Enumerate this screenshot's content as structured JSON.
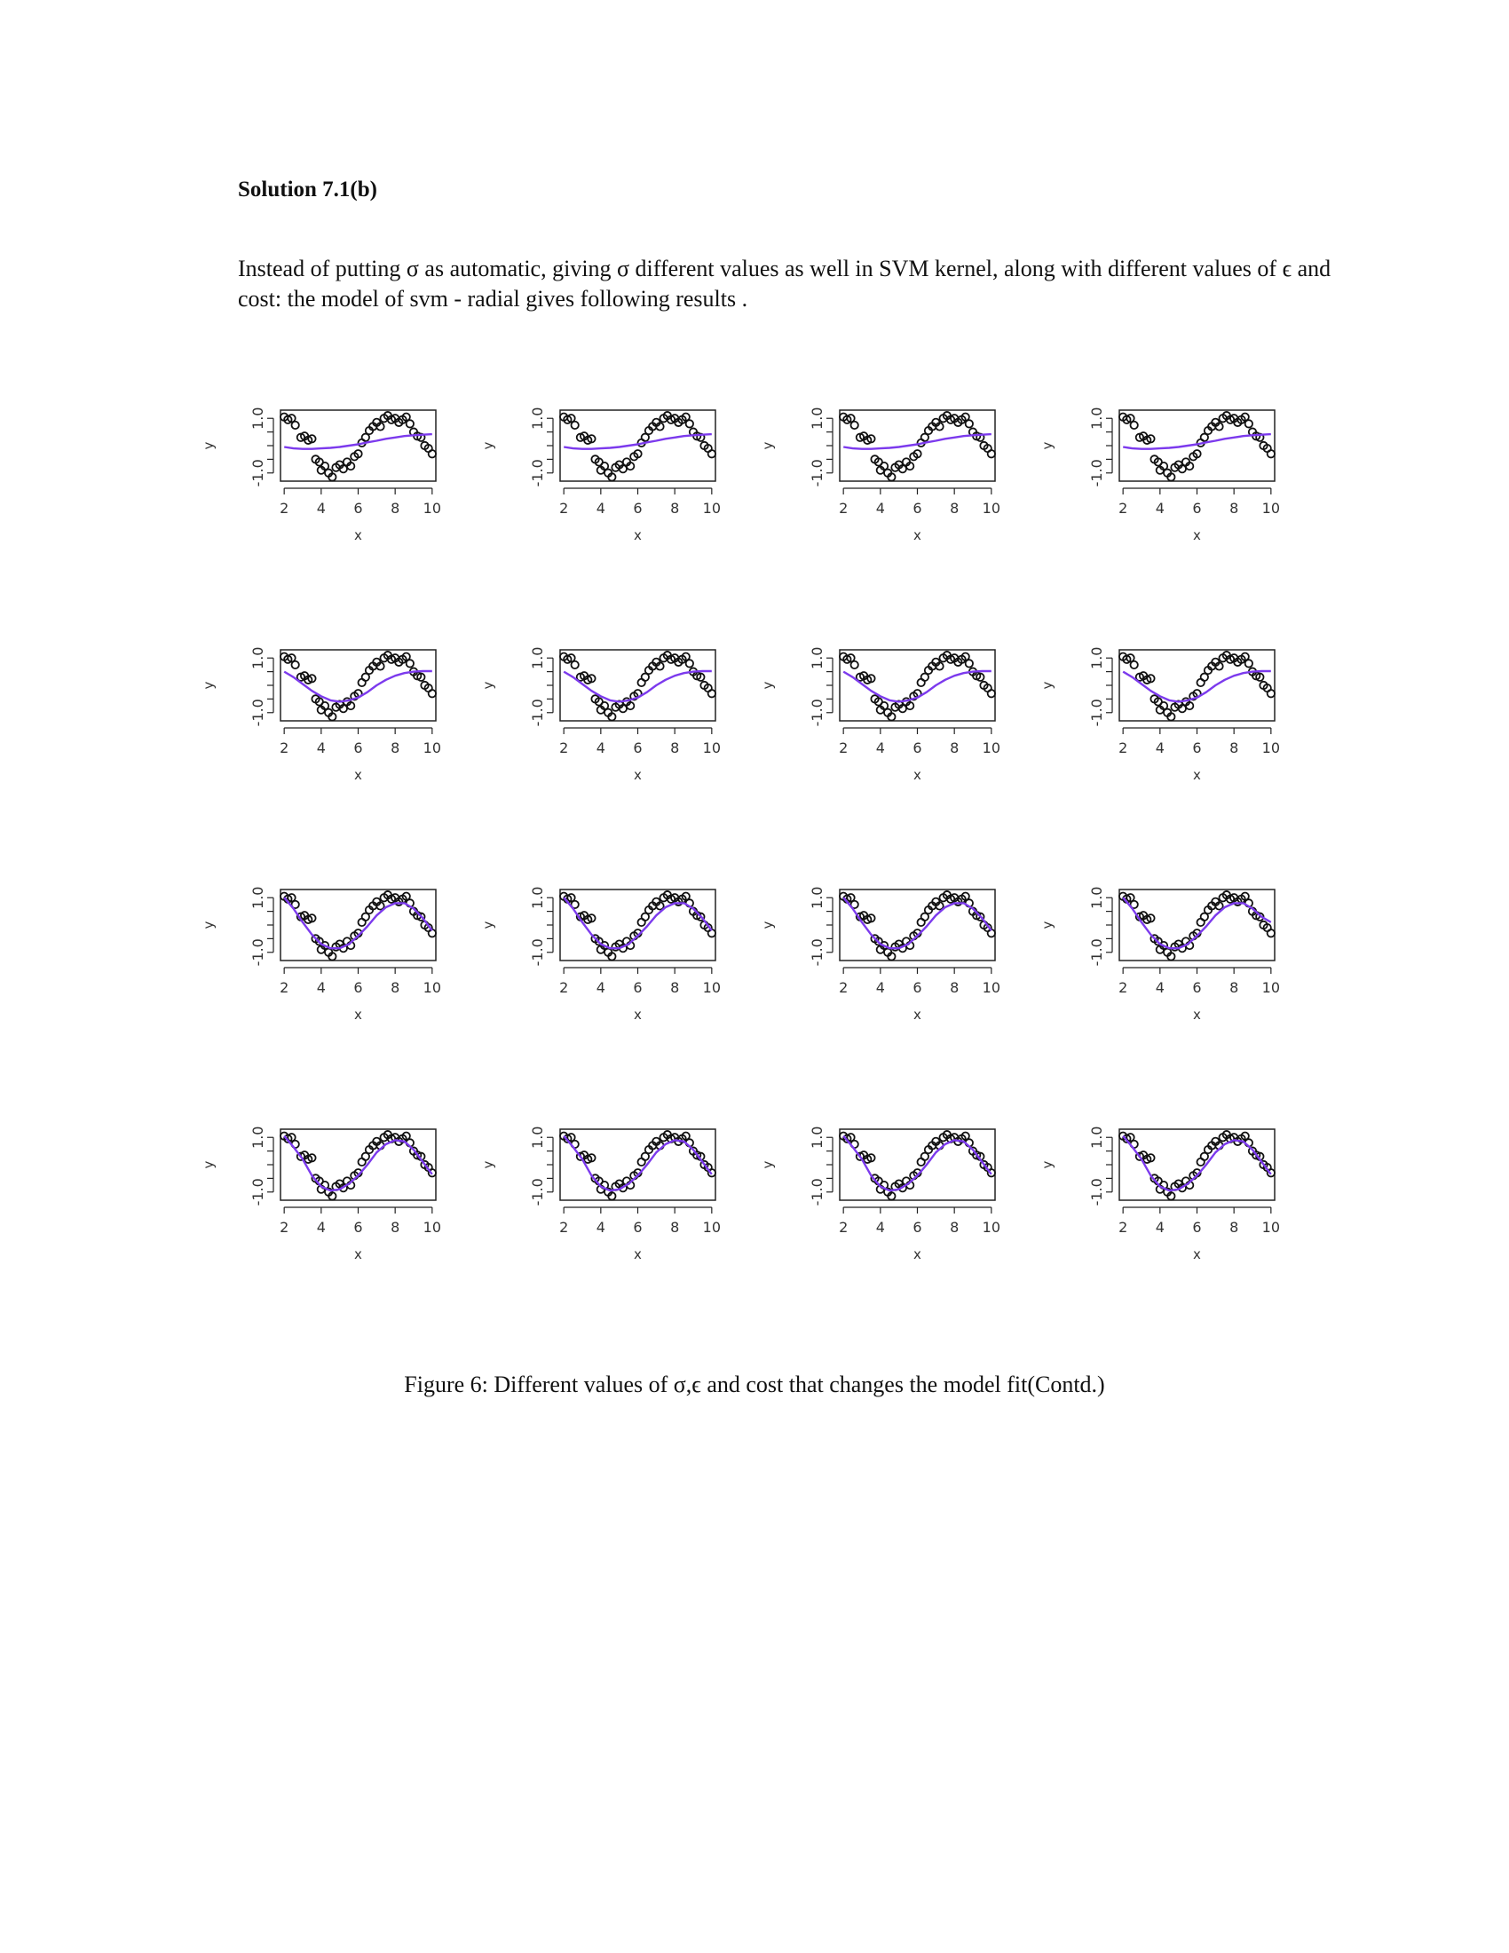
{
  "heading": "Solution 7.1(b)",
  "intro": "Instead of putting σ as automatic, giving σ different values as well in SVM kernel, along with different values of ϵ and cost: the model of svm - radial gives following results .",
  "caption": "Figure 6: Different values of σ,ϵ and cost that changes the model fit(Contd.)",
  "colors": {
    "points": "#111111",
    "fit_line": "#7c3aed",
    "axis": "#222222"
  },
  "chart_data": {
    "type": "scatter",
    "layout": "4x4 small multiples",
    "xlabel": "x",
    "ylabel": "y",
    "x_ticks": [
      "2",
      "4",
      "6",
      "8",
      "10"
    ],
    "y_ticks": [
      "-1.0",
      "1.0"
    ],
    "xlim": [
      1.8,
      10.2
    ],
    "ylim": [
      -1.3,
      1.3
    ],
    "scatter_series": {
      "x": [
        2.0,
        2.2,
        2.4,
        2.6,
        2.9,
        3.1,
        3.3,
        3.5,
        3.7,
        3.9,
        4.0,
        4.2,
        4.4,
        4.6,
        4.8,
        5.0,
        5.2,
        5.4,
        5.6,
        5.8,
        6.0,
        6.2,
        6.4,
        6.6,
        6.8,
        7.0,
        7.2,
        7.4,
        7.6,
        7.8,
        8.0,
        8.2,
        8.4,
        8.6,
        8.8,
        9.0,
        9.2,
        9.4,
        9.6,
        9.8,
        10.0
      ],
      "y": [
        1.05,
        0.95,
        1.0,
        0.75,
        0.3,
        0.35,
        0.2,
        0.25,
        -0.5,
        -0.6,
        -0.9,
        -0.75,
        -1.0,
        -1.15,
        -0.8,
        -0.7,
        -0.85,
        -0.6,
        -0.75,
        -0.4,
        -0.3,
        0.1,
        0.3,
        0.55,
        0.7,
        0.85,
        0.7,
        1.0,
        1.1,
        0.95,
        1.0,
        0.85,
        0.95,
        1.05,
        0.8,
        0.5,
        0.35,
        0.3,
        0.0,
        -0.1,
        -0.3
      ]
    },
    "fit_x": [
      2.0,
      2.5,
      3.0,
      3.5,
      4.0,
      4.5,
      5.0,
      5.5,
      6.0,
      6.5,
      7.0,
      7.5,
      8.0,
      8.5,
      9.0,
      9.5,
      10.0
    ],
    "rows": [
      {
        "fits": [
          [
            -0.05,
            -0.1,
            -0.12,
            -0.12,
            -0.1,
            -0.08,
            -0.05,
            0.0,
            0.05,
            0.12,
            0.18,
            0.25,
            0.3,
            0.35,
            0.38,
            0.4,
            0.42
          ],
          [
            -0.05,
            -0.1,
            -0.12,
            -0.12,
            -0.1,
            -0.08,
            -0.05,
            0.0,
            0.05,
            0.12,
            0.18,
            0.25,
            0.3,
            0.35,
            0.38,
            0.4,
            0.42
          ],
          [
            -0.05,
            -0.1,
            -0.12,
            -0.12,
            -0.1,
            -0.08,
            -0.05,
            0.0,
            0.05,
            0.12,
            0.18,
            0.25,
            0.3,
            0.35,
            0.38,
            0.4,
            0.42
          ],
          [
            -0.05,
            -0.1,
            -0.12,
            -0.12,
            -0.1,
            -0.08,
            -0.05,
            0.0,
            0.05,
            0.12,
            0.18,
            0.25,
            0.3,
            0.35,
            0.38,
            0.4,
            0.42
          ]
        ]
      },
      {
        "fits": [
          [
            0.5,
            0.3,
            0.05,
            -0.2,
            -0.4,
            -0.55,
            -0.6,
            -0.55,
            -0.45,
            -0.25,
            0.0,
            0.2,
            0.35,
            0.45,
            0.5,
            0.52,
            0.52
          ],
          [
            0.5,
            0.3,
            0.05,
            -0.2,
            -0.4,
            -0.55,
            -0.6,
            -0.55,
            -0.45,
            -0.25,
            0.0,
            0.2,
            0.35,
            0.45,
            0.5,
            0.52,
            0.52
          ],
          [
            0.5,
            0.3,
            0.05,
            -0.2,
            -0.4,
            -0.55,
            -0.6,
            -0.55,
            -0.45,
            -0.25,
            0.0,
            0.2,
            0.35,
            0.45,
            0.5,
            0.52,
            0.52
          ],
          [
            0.5,
            0.3,
            0.05,
            -0.2,
            -0.4,
            -0.55,
            -0.6,
            -0.55,
            -0.45,
            -0.25,
            0.0,
            0.2,
            0.35,
            0.45,
            0.5,
            0.52,
            0.52
          ]
        ]
      },
      {
        "fits": [
          [
            1.0,
            0.6,
            0.1,
            -0.35,
            -0.7,
            -0.85,
            -0.85,
            -0.7,
            -0.4,
            -0.05,
            0.35,
            0.65,
            0.8,
            0.8,
            0.6,
            0.25,
            -0.2
          ],
          [
            1.0,
            0.6,
            0.1,
            -0.35,
            -0.7,
            -0.85,
            -0.85,
            -0.7,
            -0.4,
            -0.05,
            0.35,
            0.65,
            0.8,
            0.8,
            0.6,
            0.25,
            -0.2
          ],
          [
            1.0,
            0.6,
            0.1,
            -0.35,
            -0.7,
            -0.85,
            -0.85,
            -0.7,
            -0.4,
            -0.05,
            0.35,
            0.65,
            0.8,
            0.8,
            0.6,
            0.25,
            -0.2
          ],
          [
            1.0,
            0.6,
            0.1,
            -0.35,
            -0.7,
            -0.85,
            -0.85,
            -0.7,
            -0.4,
            -0.05,
            0.35,
            0.65,
            0.8,
            0.8,
            0.6,
            0.3,
            0.1
          ]
        ]
      },
      {
        "fits": [
          [
            1.05,
            0.65,
            0.2,
            -0.4,
            -0.8,
            -0.95,
            -0.9,
            -0.7,
            -0.4,
            0.0,
            0.45,
            0.75,
            0.9,
            0.85,
            0.55,
            0.1,
            -0.35
          ],
          [
            1.05,
            0.65,
            0.2,
            -0.4,
            -0.8,
            -0.95,
            -0.9,
            -0.7,
            -0.4,
            0.0,
            0.45,
            0.75,
            0.9,
            0.85,
            0.55,
            0.1,
            -0.35
          ],
          [
            1.05,
            0.65,
            0.2,
            -0.4,
            -0.8,
            -0.95,
            -0.9,
            -0.7,
            -0.4,
            0.0,
            0.45,
            0.75,
            0.9,
            0.85,
            0.55,
            0.1,
            -0.35
          ],
          [
            1.05,
            0.65,
            0.2,
            -0.4,
            -0.8,
            -0.95,
            -0.9,
            -0.7,
            -0.4,
            0.0,
            0.45,
            0.75,
            0.9,
            0.85,
            0.55,
            0.1,
            -0.35
          ]
        ]
      }
    ]
  }
}
